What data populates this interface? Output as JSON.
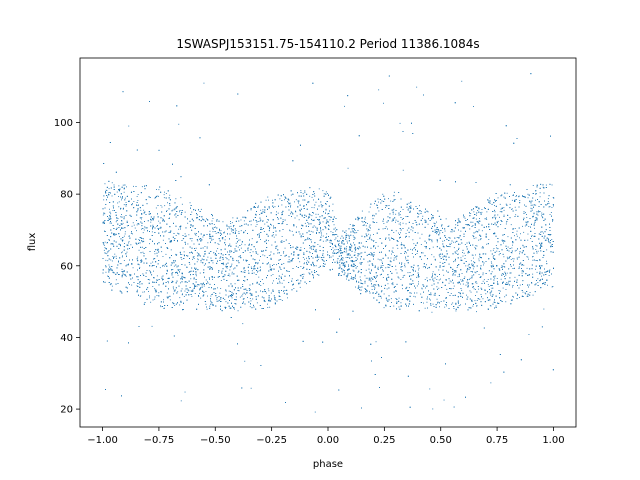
{
  "chart_data": {
    "type": "scatter",
    "title": "1SWASPJ153151.75-154110.2 Period 11386.1084s",
    "xlabel": "phase",
    "ylabel": "flux",
    "xlim": [
      -1.1,
      1.1
    ],
    "ylim": [
      15,
      118
    ],
    "x_ticks": [
      -1.0,
      -0.75,
      -0.5,
      -0.25,
      0.0,
      0.25,
      0.5,
      0.75,
      1.0
    ],
    "x_tick_labels": [
      "−1.00",
      "−0.75",
      "−0.50",
      "−0.25",
      "0.00",
      "0.25",
      "0.50",
      "0.75",
      "1.00"
    ],
    "y_ticks": [
      20,
      40,
      60,
      80,
      100
    ],
    "y_tick_labels": [
      "20",
      "40",
      "60",
      "80",
      "100"
    ],
    "grid": false,
    "marker_color": "#1f77b4",
    "series": [
      {
        "x_range": [
          -1.0,
          1.0
        ],
        "envelope": {
          "phase": [
            -1.0,
            -0.75,
            -0.5,
            -0.45,
            -0.25,
            0.0,
            0.05,
            0.25,
            0.5,
            0.55,
            0.75,
            1.0
          ],
          "upper": [
            83,
            82,
            74,
            72,
            80,
            82,
            68,
            82,
            74,
            72,
            81,
            83
          ],
          "lower": [
            55,
            48,
            48,
            48,
            48,
            60,
            58,
            48,
            48,
            48,
            48,
            55
          ]
        },
        "outlier_range": [
          19,
          114
        ]
      }
    ]
  }
}
